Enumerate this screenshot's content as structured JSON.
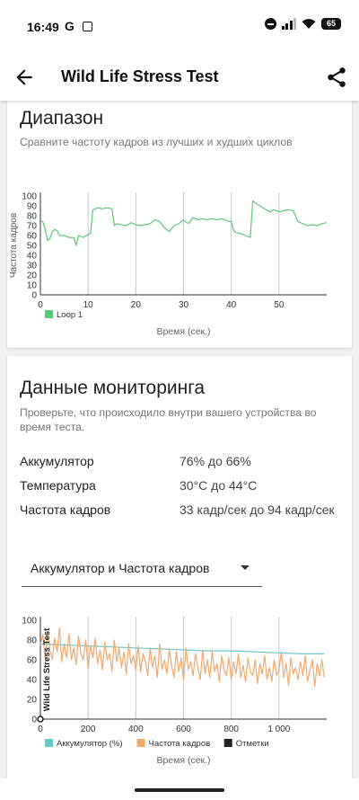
{
  "status_bar": {
    "time": "16:49",
    "g_label": "G",
    "battery": "65"
  },
  "app_bar": {
    "title": "Wild Life Stress Test"
  },
  "range_section": {
    "title": "Диапазон",
    "subtitle": "Сравните частоту кадров из лучших и худших циклов"
  },
  "monitoring_section": {
    "title": "Данные мониторинга",
    "subtitle": "Проверьте, что происходило внутри вашего устройства во время теста.",
    "rows": [
      {
        "label": "Аккумулятор",
        "value": "76% до 66%"
      },
      {
        "label": "Температура",
        "value": "30°C до 44°C"
      },
      {
        "label": "Частота кадров",
        "value": "33 кадр/сек до 94 кадр/сек"
      }
    ],
    "dropdown": {
      "selected": "Аккумулятор и Частота кадров"
    }
  },
  "chart_data": [
    {
      "type": "line",
      "title": "",
      "xlabel": "Время (сек.)",
      "ylabel": "Частота кадров",
      "xlim": [
        0,
        60
      ],
      "ylim": [
        0,
        100
      ],
      "x_ticks": [
        "0",
        "10",
        "20",
        "30",
        "40",
        "50"
      ],
      "y_ticks": [
        "0",
        "10",
        "20",
        "30",
        "40",
        "50",
        "60",
        "70",
        "80",
        "90",
        "100"
      ],
      "grid": "vertical",
      "legend": "bottom-left",
      "series": [
        {
          "name": "Loop 1",
          "color": "#5cc774",
          "x": [
            0,
            0.5,
            1,
            1.5,
            2,
            2.5,
            3,
            3.5,
            4,
            5,
            6,
            7,
            7.5,
            8,
            9,
            10,
            10.5,
            11,
            12,
            13,
            14,
            15,
            15.5,
            16,
            17,
            18,
            19,
            20,
            21,
            22,
            23,
            24,
            25,
            26,
            27,
            28,
            29,
            30,
            31,
            32,
            33,
            34,
            35,
            36,
            37,
            38,
            39,
            40,
            40.5,
            41,
            42,
            43,
            44,
            44.5,
            45,
            46,
            47,
            48,
            49,
            50,
            51,
            52,
            53,
            54,
            55,
            56,
            57,
            58,
            59,
            60
          ],
          "values": [
            75,
            74,
            66,
            55,
            57,
            64,
            66,
            65,
            60,
            60,
            58,
            58,
            50,
            60,
            58,
            61,
            62,
            86,
            88,
            87,
            88,
            87,
            70,
            72,
            71,
            70,
            73,
            71,
            70,
            71,
            72,
            76,
            74,
            68,
            64,
            70,
            72,
            76,
            72,
            78,
            76,
            77,
            76,
            77,
            76,
            77,
            75,
            74,
            65,
            63,
            62,
            60,
            58,
            95,
            93,
            90,
            87,
            84,
            86,
            84,
            85,
            86,
            85,
            74,
            72,
            70,
            71,
            70,
            72,
            73
          ]
        }
      ]
    },
    {
      "type": "line",
      "title": "",
      "xlabel": "Время (сек.)",
      "xlim": [
        0,
        1200
      ],
      "ylim": [
        0,
        100
      ],
      "x_ticks": [
        "0",
        "200",
        "400",
        "600",
        "800",
        "1 000"
      ],
      "y_ticks": [
        "0",
        "20",
        "40",
        "60",
        "80",
        "100"
      ],
      "grid": "vertical",
      "legend": "bottom-left",
      "annotations": [
        "Wild Life Stress Test"
      ],
      "series": [
        {
          "name": "Аккумулятор (%)",
          "color": "#6cc7c7",
          "x": [
            0,
            100,
            200,
            300,
            400,
            500,
            600,
            700,
            800,
            900,
            1000,
            1100,
            1190
          ],
          "values": [
            76,
            75,
            74,
            73,
            72,
            71,
            70,
            69,
            69,
            68,
            67,
            66,
            66
          ]
        },
        {
          "name": "Частота кадров",
          "color": "#f2a96b",
          "x": [
            0,
            10,
            20,
            30,
            40,
            50,
            60,
            70,
            80,
            90,
            100,
            110,
            120,
            130,
            140,
            150,
            160,
            170,
            180,
            190,
            200,
            210,
            220,
            230,
            240,
            250,
            260,
            270,
            280,
            290,
            300,
            310,
            320,
            330,
            340,
            350,
            360,
            370,
            380,
            390,
            400,
            410,
            420,
            430,
            440,
            450,
            460,
            470,
            480,
            490,
            500,
            510,
            520,
            530,
            540,
            550,
            560,
            570,
            580,
            590,
            600,
            610,
            620,
            630,
            640,
            650,
            660,
            670,
            680,
            690,
            700,
            710,
            720,
            730,
            740,
            750,
            760,
            770,
            780,
            790,
            800,
            810,
            820,
            830,
            840,
            850,
            860,
            870,
            880,
            890,
            900,
            910,
            920,
            930,
            940,
            950,
            960,
            970,
            980,
            990,
            1000,
            1010,
            1020,
            1030,
            1040,
            1050,
            1060,
            1070,
            1080,
            1090,
            1100,
            1110,
            1120,
            1130,
            1140,
            1150,
            1160,
            1170,
            1180,
            1190
          ],
          "values": [
            75,
            86,
            62,
            88,
            70,
            60,
            82,
            68,
            92,
            58,
            76,
            62,
            86,
            60,
            72,
            55,
            84,
            66,
            60,
            80,
            52,
            74,
            62,
            82,
            56,
            70,
            50,
            78,
            60,
            66,
            48,
            80,
            58,
            72,
            52,
            68,
            46,
            76,
            56,
            64,
            50,
            74,
            48,
            66,
            58,
            44,
            72,
            52,
            64,
            42,
            76,
            50,
            60,
            46,
            70,
            54,
            42,
            68,
            48,
            62,
            40,
            72,
            50,
            58,
            44,
            66,
            52,
            40,
            70,
            46,
            60,
            42,
            68,
            48,
            56,
            38,
            64,
            50,
            44,
            62,
            40,
            58,
            46,
            66,
            42,
            54,
            38,
            62,
            48,
            44,
            60,
            36,
            56,
            46,
            64,
            40,
            52,
            38,
            60,
            44,
            50,
            68,
            42,
            56,
            34,
            62,
            46,
            52,
            40,
            58,
            44,
            64,
            38,
            50,
            60,
            33,
            56,
            44,
            60,
            42
          ]
        },
        {
          "name": "Отметки",
          "color": "#222222",
          "x": [
            0
          ],
          "values": [
            0
          ]
        }
      ]
    }
  ]
}
